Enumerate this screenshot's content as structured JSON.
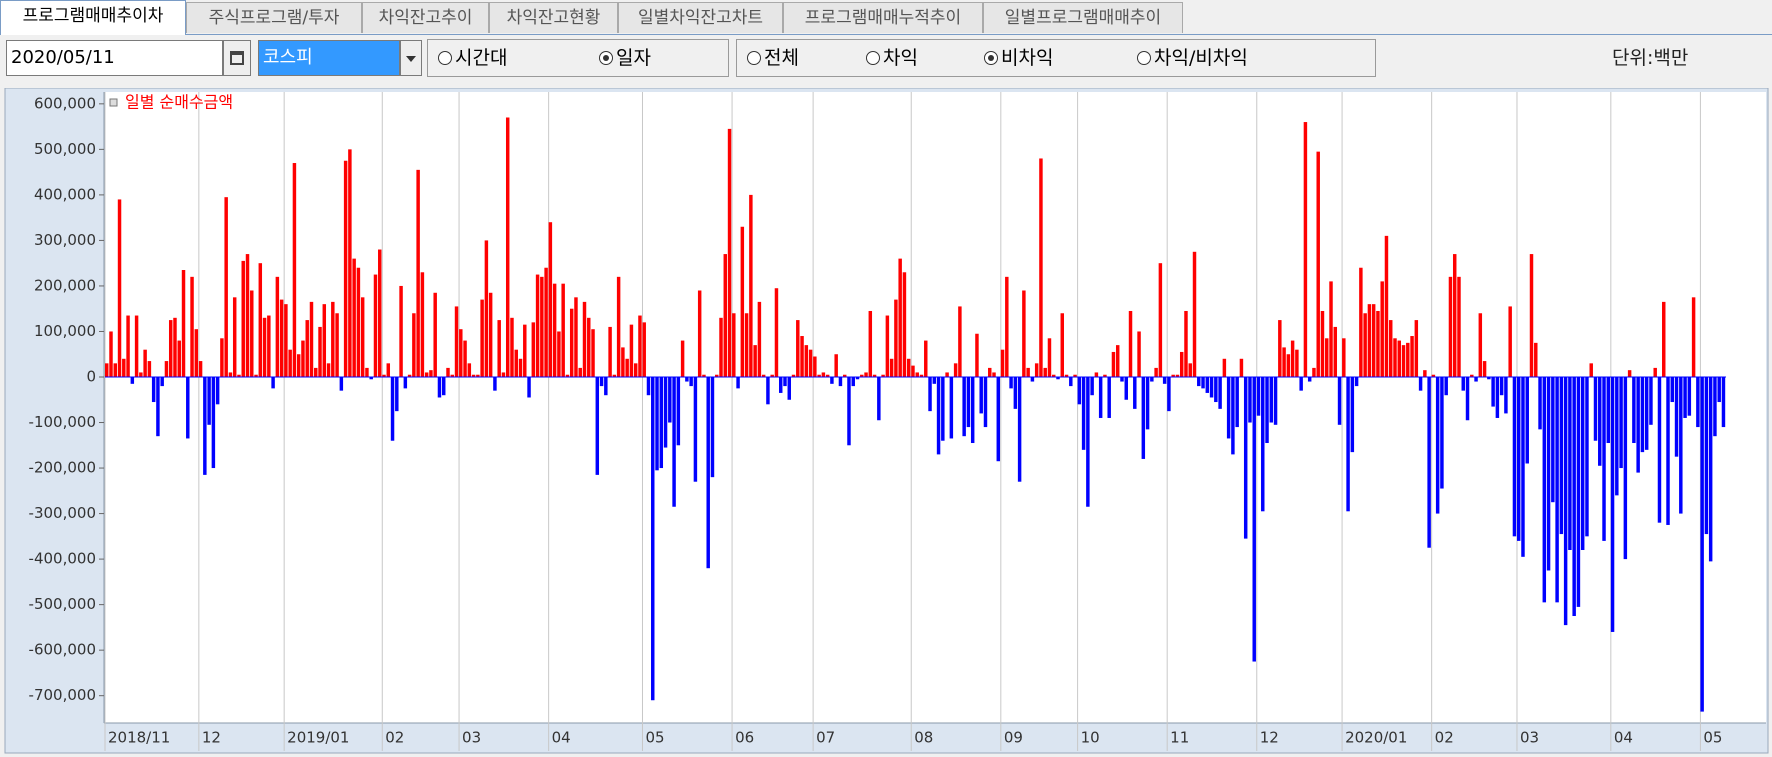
{
  "tabs": [
    "프로그램매매추이차",
    "주식프로그램/투자",
    "차익잔고추이",
    "차익잔고현황",
    "일별차익잔고차트",
    "프로그램매매누적추이",
    "일별프로그램매매추이"
  ],
  "active_tab": 0,
  "date": "2020/05/11",
  "market": "코스피",
  "radio_groups": [
    {
      "options": [
        "시간대",
        "일자"
      ],
      "selected": 1
    },
    {
      "options": [
        "전체",
        "차익",
        "비차익",
        "차익/비차익"
      ],
      "selected": 2
    }
  ],
  "unit": "단위:백만",
  "chart_data": {
    "type": "bar",
    "series": [
      {
        "name": "일별 순매수금액",
        "colors": {
          "positive": "#ff0000",
          "negative": "#0000ff"
        },
        "values": [
          30000,
          100000,
          30000,
          390000,
          40000,
          135000,
          -15000,
          135000,
          10000,
          60000,
          35000,
          -55000,
          -130000,
          -20000,
          35000,
          125000,
          130000,
          80000,
          235000,
          -135000,
          220000,
          105000,
          35000,
          -215000,
          -105000,
          -200000,
          -60000,
          85000,
          395000,
          10000,
          175000,
          5000,
          255000,
          270000,
          190000,
          5000,
          250000,
          130000,
          135000,
          -25000,
          220000,
          170000,
          160000,
          60000,
          470000,
          50000,
          80000,
          125000,
          165000,
          20000,
          110000,
          160000,
          30000,
          165000,
          140000,
          -30000,
          475000,
          500000,
          260000,
          240000,
          175000,
          20000,
          -5000,
          225000,
          280000,
          5000,
          30000,
          -140000,
          -75000,
          200000,
          -25000,
          5000,
          140000,
          455000,
          230000,
          10000,
          15000,
          185000,
          -45000,
          -40000,
          20000,
          5000,
          155000,
          105000,
          80000,
          30000,
          5000,
          5000,
          170000,
          300000,
          185000,
          -30000,
          125000,
          10000,
          570000,
          130000,
          60000,
          40000,
          115000,
          -45000,
          120000,
          225000,
          220000,
          240000,
          340000,
          205000,
          100000,
          205000,
          5000,
          150000,
          175000,
          20000,
          165000,
          130000,
          105000,
          -215000,
          -20000,
          -40000,
          110000,
          5000,
          220000,
          65000,
          40000,
          115000,
          30000,
          135000,
          120000,
          -40000,
          -710000,
          -205000,
          -200000,
          -155000,
          -100000,
          -285000,
          -150000,
          80000,
          -10000,
          -20000,
          -230000,
          190000,
          5000,
          -420000,
          -220000,
          5000,
          130000,
          270000,
          545000,
          140000,
          -25000,
          330000,
          140000,
          400000,
          70000,
          165000,
          5000,
          -60000,
          5000,
          195000,
          -35000,
          -20000,
          -50000,
          5000,
          125000,
          90000,
          70000,
          60000,
          45000,
          5000,
          10000,
          5000,
          -15000,
          50000,
          -20000,
          5000,
          -150000,
          -20000,
          -5000,
          5000,
          10000,
          145000,
          5000,
          -95000,
          5000,
          135000,
          40000,
          170000,
          260000,
          230000,
          40000,
          25000,
          10000,
          5000,
          80000,
          -75000,
          -15000,
          -170000,
          -140000,
          10000,
          -135000,
          30000,
          155000,
          -130000,
          -110000,
          -145000,
          95000,
          -80000,
          -110000,
          20000,
          10000,
          -185000,
          60000,
          220000,
          -25000,
          -70000,
          -230000,
          190000,
          20000,
          -10000,
          30000,
          480000,
          20000,
          85000,
          5000,
          -5000,
          140000,
          5000,
          -20000,
          5000,
          -60000,
          -160000,
          -285000,
          -40000,
          10000,
          -90000,
          5000,
          -90000,
          55000,
          70000,
          -10000,
          -50000,
          145000,
          -70000,
          100000,
          -180000,
          -115000,
          -10000,
          20000,
          250000,
          -15000,
          -75000,
          5000,
          5000,
          55000,
          145000,
          30000,
          275000,
          -20000,
          -25000,
          -35000,
          -45000,
          -55000,
          -70000,
          40000,
          -135000,
          -170000,
          -110000,
          40000,
          -355000,
          -100000,
          -625000,
          -85000,
          -295000,
          -145000,
          -100000,
          -105000,
          125000,
          65000,
          50000,
          80000,
          60000,
          -30000,
          560000,
          -10000,
          20000,
          495000,
          145000,
          85000,
          210000,
          110000,
          -105000,
          85000,
          -295000,
          -165000,
          -20000,
          240000,
          140000,
          160000,
          160000,
          145000,
          210000,
          310000,
          125000,
          85000,
          80000,
          70000,
          75000,
          90000,
          125000,
          -30000,
          15000,
          -375000,
          5000,
          -300000,
          -245000,
          -40000,
          220000,
          270000,
          220000,
          -30000,
          -95000,
          5000,
          -10000,
          140000,
          35000,
          -5000,
          -65000,
          -90000,
          -40000,
          -80000,
          155000,
          -350000,
          -360000,
          -395000,
          -190000,
          270000,
          75000,
          -115000,
          -495000,
          -425000,
          -275000,
          -495000,
          -345000,
          -545000,
          -380000,
          -525000,
          -505000,
          -380000,
          -350000,
          30000,
          -140000,
          -195000,
          -360000,
          -145000,
          -560000,
          -260000,
          -200000,
          -400000,
          15000,
          -145000,
          -210000,
          -165000,
          -160000,
          -105000,
          20000,
          -320000,
          165000,
          -325000,
          -55000,
          -175000,
          -300000,
          -90000,
          -85000,
          175000,
          -110000,
          -735000,
          -345000,
          -405000,
          -130000,
          -55000,
          -110000
        ]
      }
    ],
    "categories": [
      "2018/11",
      null,
      null,
      null,
      null,
      null,
      null,
      null,
      null,
      null,
      null,
      null,
      null,
      null,
      null,
      null,
      null,
      null,
      null,
      null,
      null,
      null,
      "12",
      null,
      null,
      null,
      null,
      null,
      null,
      null,
      null,
      null,
      null,
      null,
      null,
      null,
      null,
      null,
      null,
      null,
      null,
      null,
      "2019/01",
      null,
      null,
      null,
      null,
      null,
      null,
      null,
      null,
      null,
      null,
      null,
      null,
      null,
      null,
      null,
      null,
      null,
      null,
      null,
      null,
      null,
      null,
      "02",
      null,
      null,
      null,
      null,
      null,
      null,
      null,
      null,
      null,
      null,
      null,
      null,
      null,
      null,
      null,
      null,
      null,
      "03",
      null,
      null,
      null,
      null,
      null,
      null,
      null,
      null,
      null,
      null,
      null,
      null,
      null,
      null,
      null,
      null,
      null,
      null,
      null,
      null,
      "04",
      null,
      null,
      null,
      null,
      null,
      null,
      null,
      null,
      null,
      null,
      null,
      null,
      null,
      null,
      null,
      null,
      null,
      null,
      null,
      null,
      null,
      "05",
      null,
      null,
      null,
      null,
      null,
      null,
      null,
      null,
      null,
      null,
      null,
      null,
      null,
      null,
      null,
      null,
      null,
      null,
      null,
      null,
      "06",
      null,
      null,
      null,
      null,
      null,
      null,
      null,
      null,
      null,
      null,
      null,
      null,
      null,
      null,
      null,
      null,
      null,
      null,
      "07",
      null,
      null,
      null,
      null,
      null,
      null,
      null,
      null,
      null,
      null,
      null,
      null,
      null,
      null,
      null,
      null,
      null,
      null,
      null,
      null,
      null,
      null,
      "08",
      null,
      null,
      null,
      null,
      null,
      null,
      null,
      null,
      null,
      null,
      null,
      null,
      null,
      null,
      null,
      null,
      null,
      null,
      null,
      null,
      "09",
      null,
      null,
      null,
      null,
      null,
      null,
      null,
      null,
      null,
      null,
      null,
      null,
      null,
      null,
      null,
      null,
      null,
      "10",
      null,
      null,
      null,
      null,
      null,
      null,
      null,
      null,
      null,
      null,
      null,
      null,
      null,
      null,
      null,
      null,
      null,
      null,
      null,
      null,
      "11",
      null,
      null,
      null,
      null,
      null,
      null,
      null,
      null,
      null,
      null,
      null,
      null,
      null,
      null,
      null,
      null,
      null,
      null,
      null,
      null,
      "12",
      null,
      null,
      null,
      null,
      null,
      null,
      null,
      null,
      null,
      null,
      null,
      null,
      null,
      null,
      null,
      null,
      null,
      null,
      null,
      "2020/01",
      null,
      null,
      null,
      null,
      null,
      null,
      null,
      null,
      null,
      null,
      null,
      null,
      null,
      null,
      null,
      null,
      null,
      null,
      null,
      null,
      "02",
      null,
      null,
      null,
      null,
      null,
      null,
      null,
      null,
      null,
      null,
      null,
      null,
      null,
      null,
      null,
      null,
      null,
      null,
      null,
      "03",
      null,
      null,
      null,
      null,
      null,
      null,
      null,
      null,
      null,
      null,
      null,
      null,
      null,
      null,
      null,
      null,
      null,
      null,
      null,
      null,
      null,
      "04",
      null,
      null,
      null,
      null,
      null,
      null,
      null,
      null,
      null,
      null,
      null,
      null,
      null,
      null,
      null,
      null,
      null,
      null,
      null,
      null,
      "05",
      null,
      null,
      null,
      null,
      null
    ],
    "ylim": [
      -760000,
      626000
    ],
    "yticks": [
      {
        "value": 600000,
        "label": "600,000"
      },
      {
        "value": 500000,
        "label": "500,000"
      },
      {
        "value": 400000,
        "label": "400,000"
      },
      {
        "value": 300000,
        "label": "300,000"
      },
      {
        "value": 200000,
        "label": "200,000"
      },
      {
        "value": 100000,
        "label": "100,000"
      },
      0,
      {
        "value": -100000,
        "label": "-100,000"
      },
      {
        "value": -200000,
        "label": "-200,000"
      },
      {
        "value": -300000,
        "label": "-300,000"
      },
      {
        "value": -400000,
        "label": "-400,000"
      },
      {
        "value": -500000,
        "label": "-500,000"
      },
      {
        "value": -600000,
        "label": "-600,000"
      },
      {
        "value": -700000,
        "label": "-700,000"
      }
    ],
    "xgrid": true
  }
}
